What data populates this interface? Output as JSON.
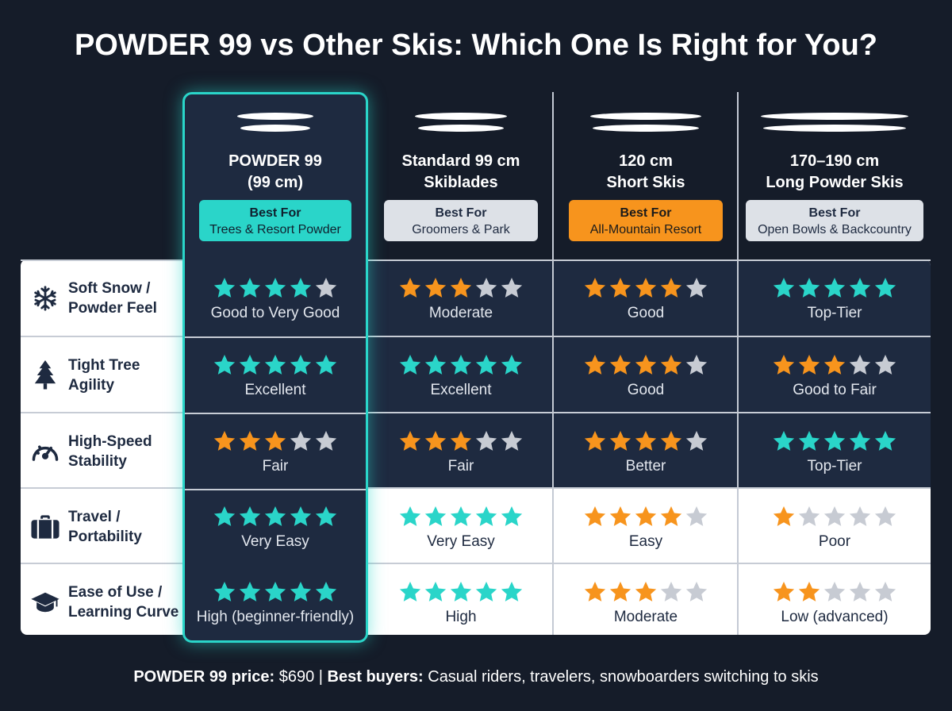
{
  "title": "POWDER 99 vs Other Skis: Which One Is Right for You?",
  "colors": {
    "teal": "#2ad5c9",
    "orange": "#f7941d",
    "gray_star": "#c7cbd3",
    "dark_panel": "#1e2a40",
    "background": "#151c29"
  },
  "columns": [
    {
      "name_line1": "POWDER 99",
      "name_line2": "(99 cm)",
      "badge_title": "Best For",
      "badge_text": "Trees & Resort Powder",
      "badge_style": "teal"
    },
    {
      "name_line1": "Standard 99 cm",
      "name_line2": "Skiblades",
      "badge_title": "Best For",
      "badge_text": "Groomers & Park",
      "badge_style": "light"
    },
    {
      "name_line1": "120 cm",
      "name_line2": "Short Skis",
      "badge_title": "Best For",
      "badge_text": "All-Mountain Resort",
      "badge_style": "orange"
    },
    {
      "name_line1": "170–190 cm",
      "name_line2": "Long Powder Skis",
      "badge_title": "Best For",
      "badge_text": "Open Bowls & Backcountry",
      "badge_style": "light"
    }
  ],
  "features": [
    {
      "label_line1": "Soft Snow /",
      "label_line2": "Powder Feel",
      "icon": "snowflake-icon",
      "ratings": [
        {
          "stars": 4,
          "color": "teal",
          "text": "Good to Very Good"
        },
        {
          "stars": 3,
          "color": "orange",
          "text": "Moderate"
        },
        {
          "stars": 4,
          "color": "orange",
          "text": "Good"
        },
        {
          "stars": 5,
          "color": "teal",
          "text": "Top-Tier"
        }
      ]
    },
    {
      "label_line1": "Tight Tree",
      "label_line2": "Agility",
      "icon": "tree-icon",
      "ratings": [
        {
          "stars": 5,
          "color": "teal",
          "text": "Excellent"
        },
        {
          "stars": 5,
          "color": "teal",
          "text": "Excellent"
        },
        {
          "stars": 4,
          "color": "orange",
          "text": "Good"
        },
        {
          "stars": 3,
          "color": "orange",
          "text": "Good to Fair"
        }
      ]
    },
    {
      "label_line1": "High-Speed",
      "label_line2": "Stability",
      "icon": "speedometer-icon",
      "ratings": [
        {
          "stars": 3,
          "color": "orange",
          "text": "Fair"
        },
        {
          "stars": 3,
          "color": "orange",
          "text": "Fair"
        },
        {
          "stars": 4,
          "color": "orange",
          "text": "Better"
        },
        {
          "stars": 5,
          "color": "teal",
          "text": "Top-Tier"
        }
      ]
    },
    {
      "label_line1": "Travel /",
      "label_line2": "Portability",
      "icon": "suitcase-icon",
      "ratings": [
        {
          "stars": 5,
          "color": "teal",
          "text": "Very Easy"
        },
        {
          "stars": 5,
          "color": "teal",
          "text": "Very Easy"
        },
        {
          "stars": 4,
          "color": "orange",
          "text": "Easy"
        },
        {
          "stars": 1,
          "color": "orange",
          "text": "Poor"
        }
      ]
    },
    {
      "label_line1": "Ease of Use /",
      "label_line2": "Learning Curve",
      "icon": "graduation-cap-icon",
      "ratings": [
        {
          "stars": 5,
          "color": "teal",
          "text": "High (beginner-friendly)"
        },
        {
          "stars": 5,
          "color": "teal",
          "text": "High"
        },
        {
          "stars": 3,
          "color": "orange",
          "text": "Moderate"
        },
        {
          "stars": 2,
          "color": "orange",
          "text": "Low (advanced)"
        }
      ]
    }
  ],
  "footer": {
    "price_label": "POWDER 99 price:",
    "price_value": " $690 | ",
    "buyers_label": "Best buyers:",
    "buyers_value": " Casual riders, travelers, snowboarders switching to skis"
  }
}
